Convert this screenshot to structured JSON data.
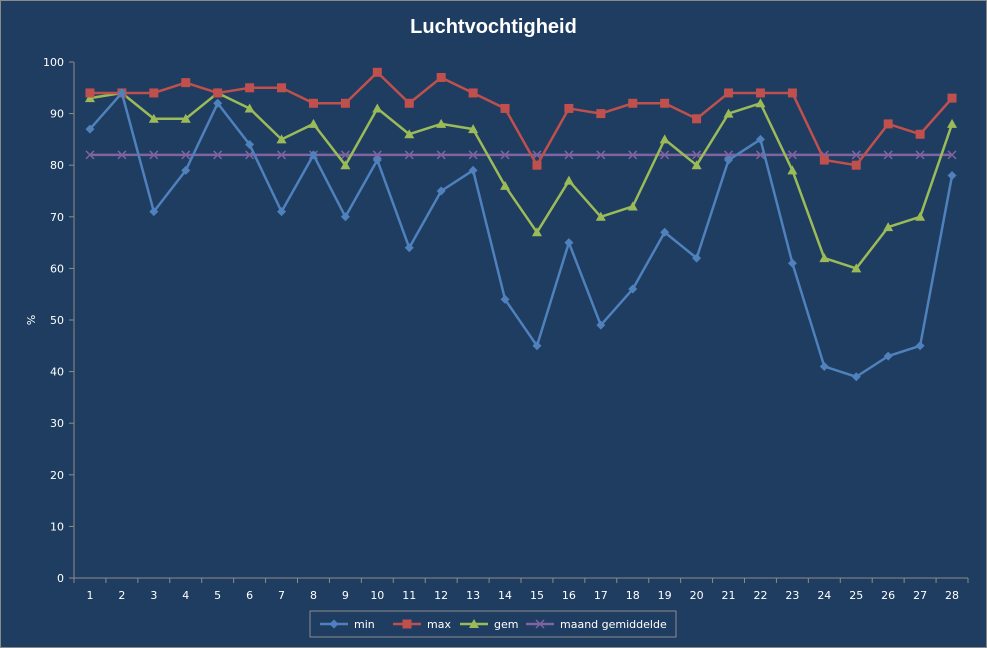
{
  "chart_data": {
    "type": "line",
    "title": "Luchtvochtigheid",
    "xlabel": "",
    "ylabel": "%",
    "ylim": [
      0,
      100
    ],
    "yticks": [
      0,
      10,
      20,
      30,
      40,
      50,
      60,
      70,
      80,
      90,
      100
    ],
    "categories": [
      "1",
      "2",
      "3",
      "4",
      "5",
      "6",
      "7",
      "8",
      "9",
      "10",
      "11",
      "12",
      "13",
      "14",
      "15",
      "16",
      "17",
      "18",
      "19",
      "20",
      "21",
      "22",
      "23",
      "24",
      "25",
      "26",
      "27",
      "28"
    ],
    "grid": false,
    "legend": "bottom",
    "series": [
      {
        "name": "min",
        "color": "#4f81bd",
        "marker": "diamond",
        "values": [
          87,
          94,
          71,
          79,
          92,
          84,
          71,
          82,
          70,
          81,
          64,
          75,
          79,
          54,
          45,
          65,
          49,
          56,
          67,
          62,
          81,
          85,
          61,
          41,
          39,
          43,
          45,
          78
        ]
      },
      {
        "name": "max",
        "color": "#c0504d",
        "marker": "square",
        "values": [
          94,
          94,
          94,
          96,
          94,
          95,
          95,
          92,
          92,
          98,
          92,
          97,
          94,
          91,
          80,
          91,
          90,
          92,
          92,
          89,
          94,
          94,
          94,
          81,
          80,
          88,
          86,
          93
        ]
      },
      {
        "name": "gem",
        "color": "#9bbb59",
        "marker": "triangle",
        "values": [
          93,
          94,
          89,
          89,
          94,
          91,
          85,
          88,
          80,
          91,
          86,
          88,
          87,
          76,
          67,
          77,
          70,
          72,
          85,
          80,
          90,
          92,
          79,
          62,
          60,
          68,
          70,
          88
        ]
      },
      {
        "name": "maand gemiddelde",
        "color": "#8064a2",
        "marker": "x",
        "values": [
          82,
          82,
          82,
          82,
          82,
          82,
          82,
          82,
          82,
          82,
          82,
          82,
          82,
          82,
          82,
          82,
          82,
          82,
          82,
          82,
          82,
          82,
          82,
          82,
          82,
          82,
          82,
          82
        ]
      }
    ]
  }
}
